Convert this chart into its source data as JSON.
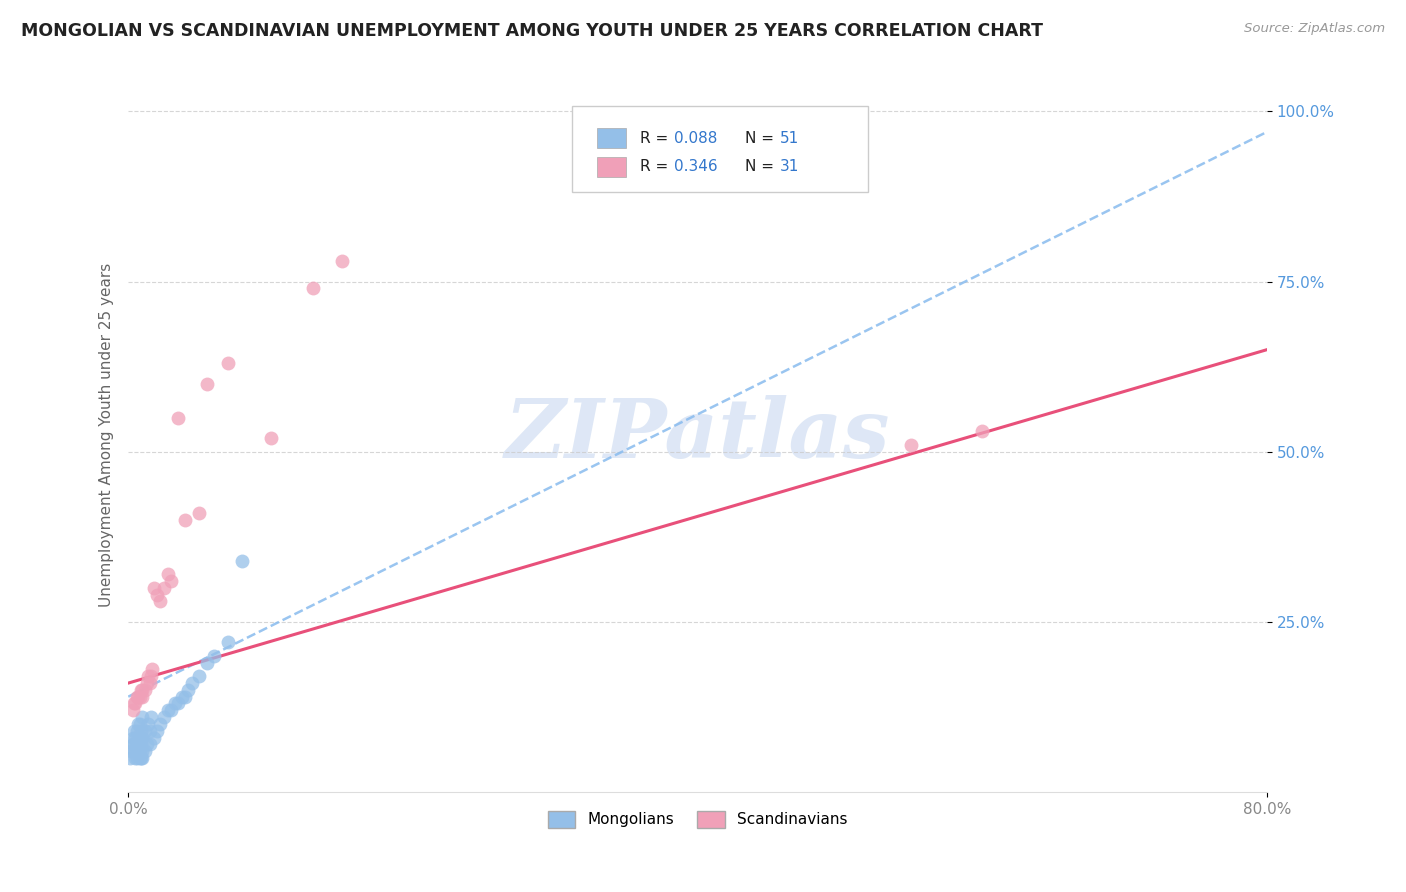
{
  "title": "MONGOLIAN VS SCANDINAVIAN UNEMPLOYMENT AMONG YOUTH UNDER 25 YEARS CORRELATION CHART",
  "source": "Source: ZipAtlas.com",
  "ylabel": "Unemployment Among Youth under 25 years",
  "xlim": [
    0,
    0.8
  ],
  "ylim": [
    0,
    1.05
  ],
  "xtick_positions": [
    0.0,
    0.8
  ],
  "xtick_labels": [
    "0.0%",
    "80.0%"
  ],
  "ytick_positions": [
    1.0,
    0.75,
    0.5,
    0.25
  ],
  "ytick_labels": [
    "100.0%",
    "75.0%",
    "50.0%",
    "25.0%"
  ],
  "mongolian_color": "#94bfe8",
  "scandinavian_color": "#f0a0b8",
  "mongolian_line_color": "#88bbee",
  "scandinavian_line_color": "#e8507a",
  "mongolian_trend_x": [
    0.0,
    0.8
  ],
  "mongolian_trend_y": [
    0.14,
    0.97
  ],
  "scandinavian_trend_x": [
    0.0,
    0.8
  ],
  "scandinavian_trend_y": [
    0.16,
    0.65
  ],
  "mongolians_x": [
    0.001,
    0.002,
    0.003,
    0.003,
    0.004,
    0.004,
    0.004,
    0.005,
    0.005,
    0.005,
    0.006,
    0.006,
    0.006,
    0.007,
    0.007,
    0.007,
    0.008,
    0.008,
    0.008,
    0.008,
    0.009,
    0.009,
    0.009,
    0.01,
    0.01,
    0.01,
    0.01,
    0.012,
    0.012,
    0.013,
    0.014,
    0.015,
    0.015,
    0.016,
    0.018,
    0.02,
    0.022,
    0.025,
    0.028,
    0.03,
    0.033,
    0.035,
    0.038,
    0.04,
    0.042,
    0.045,
    0.05,
    0.055,
    0.06,
    0.07,
    0.08
  ],
  "mongolians_y": [
    0.05,
    0.06,
    0.07,
    0.08,
    0.06,
    0.07,
    0.09,
    0.05,
    0.06,
    0.08,
    0.05,
    0.07,
    0.09,
    0.06,
    0.07,
    0.1,
    0.05,
    0.06,
    0.08,
    0.1,
    0.05,
    0.07,
    0.09,
    0.05,
    0.06,
    0.08,
    0.11,
    0.06,
    0.09,
    0.07,
    0.1,
    0.07,
    0.09,
    0.11,
    0.08,
    0.09,
    0.1,
    0.11,
    0.12,
    0.12,
    0.13,
    0.13,
    0.14,
    0.14,
    0.15,
    0.16,
    0.17,
    0.19,
    0.2,
    0.22,
    0.34
  ],
  "scandinavians_x": [
    0.003,
    0.004,
    0.005,
    0.006,
    0.007,
    0.008,
    0.009,
    0.01,
    0.01,
    0.012,
    0.013,
    0.014,
    0.015,
    0.016,
    0.017,
    0.018,
    0.02,
    0.022,
    0.025,
    0.028,
    0.03,
    0.035,
    0.04,
    0.05,
    0.055,
    0.07,
    0.1,
    0.13,
    0.15,
    0.55,
    0.6
  ],
  "scandinavians_y": [
    0.12,
    0.13,
    0.13,
    0.14,
    0.14,
    0.14,
    0.15,
    0.14,
    0.15,
    0.15,
    0.16,
    0.17,
    0.16,
    0.17,
    0.18,
    0.3,
    0.29,
    0.28,
    0.3,
    0.32,
    0.31,
    0.55,
    0.4,
    0.41,
    0.6,
    0.63,
    0.52,
    0.74,
    0.78,
    0.51,
    0.53
  ],
  "watermark_text": "ZIPatlas",
  "watermark_color": "#c8d8f0",
  "legend_items": [
    {
      "label": "R = 0.088   N = 51",
      "color": "#94bfe8"
    },
    {
      "label": "R = 0.346   N = 31",
      "color": "#f0a0b8"
    }
  ],
  "bottom_legend": [
    "Mongolians",
    "Scandinavians"
  ],
  "grid_color": "#cccccc",
  "tick_color_right": "#5599dd",
  "tick_color_bottom": "#888888"
}
